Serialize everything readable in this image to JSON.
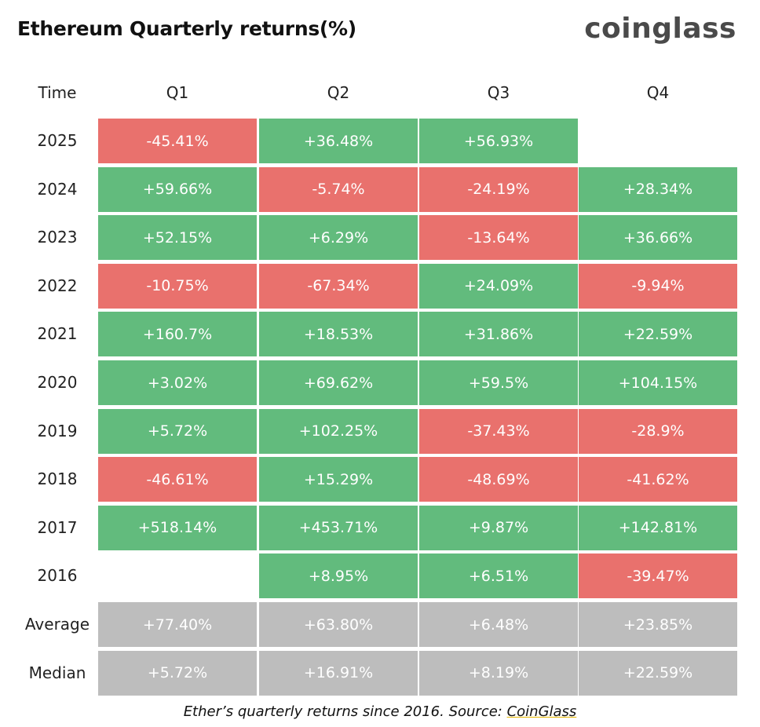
{
  "header": {
    "title": "Ethereum Quarterly returns(%)",
    "brand": "coinglass"
  },
  "caption": {
    "text": "Ether’s quarterly returns since 2016. Source: ",
    "source": "CoinGlass"
  },
  "colors": {
    "positive": "#62bb7d",
    "negative": "#e9716d",
    "summary": "#bdbdbd"
  },
  "chart_data": {
    "type": "table",
    "title": "Ethereum Quarterly returns(%)",
    "row_header_label": "Time",
    "columns": [
      "Q1",
      "Q2",
      "Q3",
      "Q4"
    ],
    "rows": [
      {
        "label": "2025",
        "cells": [
          {
            "text": "-45.41%",
            "value": -45.41
          },
          {
            "text": "+36.48%",
            "value": 36.48
          },
          {
            "text": "+56.93%",
            "value": 56.93
          },
          null
        ]
      },
      {
        "label": "2024",
        "cells": [
          {
            "text": "+59.66%",
            "value": 59.66
          },
          {
            "text": "-5.74%",
            "value": -5.74
          },
          {
            "text": "-24.19%",
            "value": -24.19
          },
          {
            "text": "+28.34%",
            "value": 28.34
          }
        ]
      },
      {
        "label": "2023",
        "cells": [
          {
            "text": "+52.15%",
            "value": 52.15
          },
          {
            "text": "+6.29%",
            "value": 6.29
          },
          {
            "text": "-13.64%",
            "value": -13.64
          },
          {
            "text": "+36.66%",
            "value": 36.66
          }
        ]
      },
      {
        "label": "2022",
        "cells": [
          {
            "text": "-10.75%",
            "value": -10.75
          },
          {
            "text": "-67.34%",
            "value": -67.34
          },
          {
            "text": "+24.09%",
            "value": 24.09
          },
          {
            "text": "-9.94%",
            "value": -9.94
          }
        ]
      },
      {
        "label": "2021",
        "cells": [
          {
            "text": "+160.7%",
            "value": 160.7
          },
          {
            "text": "+18.53%",
            "value": 18.53
          },
          {
            "text": "+31.86%",
            "value": 31.86
          },
          {
            "text": "+22.59%",
            "value": 22.59
          }
        ]
      },
      {
        "label": "2020",
        "cells": [
          {
            "text": "+3.02%",
            "value": 3.02
          },
          {
            "text": "+69.62%",
            "value": 69.62
          },
          {
            "text": "+59.5%",
            "value": 59.5
          },
          {
            "text": "+104.15%",
            "value": 104.15
          }
        ]
      },
      {
        "label": "2019",
        "cells": [
          {
            "text": "+5.72%",
            "value": 5.72
          },
          {
            "text": "+102.25%",
            "value": 102.25
          },
          {
            "text": "-37.43%",
            "value": -37.43
          },
          {
            "text": "-28.9%",
            "value": -28.9
          }
        ]
      },
      {
        "label": "2018",
        "cells": [
          {
            "text": "-46.61%",
            "value": -46.61
          },
          {
            "text": "+15.29%",
            "value": 15.29
          },
          {
            "text": "-48.69%",
            "value": -48.69
          },
          {
            "text": "-41.62%",
            "value": -41.62
          }
        ]
      },
      {
        "label": "2017",
        "cells": [
          {
            "text": "+518.14%",
            "value": 518.14
          },
          {
            "text": "+453.71%",
            "value": 453.71
          },
          {
            "text": "+9.87%",
            "value": 9.87
          },
          {
            "text": "+142.81%",
            "value": 142.81
          }
        ]
      },
      {
        "label": "2016",
        "cells": [
          null,
          {
            "text": "+8.95%",
            "value": 8.95
          },
          {
            "text": "+6.51%",
            "value": 6.51
          },
          {
            "text": "-39.47%",
            "value": -39.47
          }
        ]
      }
    ],
    "summary_rows": [
      {
        "label": "Average",
        "cells": [
          {
            "text": "+77.40%",
            "value": 77.4
          },
          {
            "text": "+63.80%",
            "value": 63.8
          },
          {
            "text": "+6.48%",
            "value": 6.48
          },
          {
            "text": "+23.85%",
            "value": 23.85
          }
        ]
      },
      {
        "label": "Median",
        "cells": [
          {
            "text": "+5.72%",
            "value": 5.72
          },
          {
            "text": "+16.91%",
            "value": 16.91
          },
          {
            "text": "+8.19%",
            "value": 8.19
          },
          {
            "text": "+22.59%",
            "value": 22.59
          }
        ]
      }
    ]
  }
}
